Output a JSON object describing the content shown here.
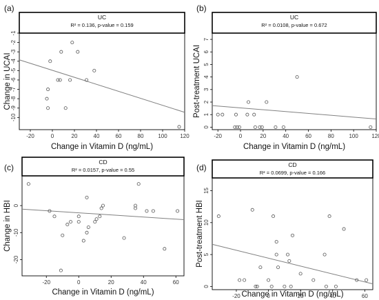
{
  "figure": {
    "panels": [
      {
        "id": "a",
        "label": "(a)",
        "strip_title": "UC",
        "stats_text": "R² = 0.136, p-value = 0.159",
        "xlabel": "Change in Vitamin D (ng/mL)",
        "ylabel": "Change in UCAI"
      },
      {
        "id": "b",
        "label": "(b)",
        "strip_title": "UC",
        "stats_text": "R² = 0.0108, p-value = 0.672",
        "xlabel": "Change in Vitamin D (ng/mL)",
        "ylabel": "Post-treatment UCAI"
      },
      {
        "id": "c",
        "label": "(c)",
        "strip_title": "CD",
        "stats_text": "R² = 0.0157, p-value = 0.55",
        "xlabel": "Change in Vitamin D (ng/mL)",
        "ylabel": "Change in HBI"
      },
      {
        "id": "d",
        "label": "(d)",
        "strip_title": "CD",
        "stats_text": "R² = 0.0699, p-value = 0.166",
        "xlabel": "Change in Vitamin D (ng/mL)",
        "ylabel": "Post-treatment HBI"
      }
    ]
  },
  "chart_data": [
    {
      "type": "scatter",
      "panel": "a",
      "title": "UC",
      "annotation": "R² = 0.136, p-value = 0.159",
      "xlabel": "Change in Vitamin D (ng/mL)",
      "ylabel": "Change in UCAI",
      "xlim": [
        -30,
        120
      ],
      "ylim": [
        -11.3,
        -1
      ],
      "xticks": [
        -20,
        0,
        20,
        40,
        60,
        80,
        100,
        120
      ],
      "yticks": [
        -10,
        -9,
        -8,
        -7,
        -6,
        -5,
        -4,
        -3,
        -2,
        -1
      ],
      "points": [
        {
          "x": -5,
          "y": -8
        },
        {
          "x": -4,
          "y": -9
        },
        {
          "x": -4,
          "y": -7
        },
        {
          "x": -2,
          "y": -4
        },
        {
          "x": 5,
          "y": -6
        },
        {
          "x": 7,
          "y": -6
        },
        {
          "x": 8,
          "y": -3
        },
        {
          "x": 12,
          "y": -9
        },
        {
          "x": 16,
          "y": -6
        },
        {
          "x": 18,
          "y": -2
        },
        {
          "x": 23,
          "y": -3
        },
        {
          "x": 31,
          "y": -6
        },
        {
          "x": 38,
          "y": -5
        },
        {
          "x": 115,
          "y": -11
        }
      ],
      "regression": {
        "x": [
          -30,
          120
        ],
        "y": [
          -3.85,
          -9.45
        ]
      },
      "grid": false,
      "marker_color": "#555555",
      "line_color": "#808080"
    },
    {
      "type": "scatter",
      "panel": "b",
      "title": "UC",
      "annotation": "R² = 0.0108, p-value = 0.672",
      "xlabel": "Change in Vitamin D (ng/mL)",
      "ylabel": "Post-treatment UCAI",
      "xlim": [
        -25,
        120
      ],
      "ylim": [
        -0.2,
        7.5
      ],
      "xticks": [
        -20,
        0,
        20,
        40,
        60,
        80,
        100,
        120
      ],
      "yticks": [
        0,
        1,
        2,
        3,
        4,
        5,
        6,
        7
      ],
      "points": [
        {
          "x": -20,
          "y": 1
        },
        {
          "x": -16,
          "y": 1
        },
        {
          "x": -5,
          "y": 0
        },
        {
          "x": -4,
          "y": 1
        },
        {
          "x": -3,
          "y": 0
        },
        {
          "x": -1,
          "y": 0
        },
        {
          "x": 6,
          "y": 1
        },
        {
          "x": 7,
          "y": 2
        },
        {
          "x": 12,
          "y": 1
        },
        {
          "x": 13,
          "y": 0
        },
        {
          "x": 17,
          "y": 0
        },
        {
          "x": 19,
          "y": 0
        },
        {
          "x": 23,
          "y": 2
        },
        {
          "x": 31,
          "y": 0
        },
        {
          "x": 38,
          "y": 0
        },
        {
          "x": 50,
          "y": 4
        },
        {
          "x": 115,
          "y": 0
        }
      ],
      "regression": {
        "x": [
          -25,
          120
        ],
        "y": [
          1.72,
          0.65
        ]
      },
      "grid": false,
      "marker_color": "#555555",
      "line_color": "#808080"
    },
    {
      "type": "scatter",
      "panel": "c",
      "title": "CD",
      "annotation": "R² = 0.0157, p-value = 0.55",
      "xlabel": "Change in Vitamin D (ng/mL)",
      "ylabel": "Change in HBI",
      "xlim": [
        -35,
        65
      ],
      "ylim": [
        -26,
        11
      ],
      "xticks": [
        -20,
        0,
        20,
        40,
        60
      ],
      "yticks": [
        -20,
        -10,
        0
      ],
      "points": [
        {
          "x": -31,
          "y": 8
        },
        {
          "x": -18,
          "y": -2
        },
        {
          "x": -15,
          "y": -4
        },
        {
          "x": -11,
          "y": -24
        },
        {
          "x": -10,
          "y": -11
        },
        {
          "x": -7,
          "y": -7
        },
        {
          "x": -5,
          "y": -6
        },
        {
          "x": 0,
          "y": -6
        },
        {
          "x": 0,
          "y": -4
        },
        {
          "x": 3,
          "y": -13
        },
        {
          "x": 5,
          "y": -10
        },
        {
          "x": 5,
          "y": 3
        },
        {
          "x": 6,
          "y": -8
        },
        {
          "x": 10,
          "y": -6
        },
        {
          "x": 11,
          "y": -5
        },
        {
          "x": 13,
          "y": -4
        },
        {
          "x": 14,
          "y": -1
        },
        {
          "x": 15,
          "y": 0
        },
        {
          "x": 28,
          "y": -12
        },
        {
          "x": 35,
          "y": 0
        },
        {
          "x": 35,
          "y": -1
        },
        {
          "x": 37,
          "y": 8
        },
        {
          "x": 42,
          "y": -2
        },
        {
          "x": 46,
          "y": -2
        },
        {
          "x": 53,
          "y": -16
        },
        {
          "x": 61,
          "y": -2
        }
      ],
      "regression": {
        "x": [
          -35,
          65
        ],
        "y": [
          -1.3,
          -5.2
        ]
      },
      "grid": false,
      "marker_color": "#555555",
      "line_color": "#808080"
    },
    {
      "type": "scatter",
      "panel": "d",
      "title": "CD",
      "annotation": "R² = 0.0699, p-value = 0.166",
      "xlabel": "Change in Vitamin D (ng/mL)",
      "ylabel": "Post-treatment HBI",
      "xlim": [
        -35,
        65
      ],
      "ylim": [
        -0.5,
        17
      ],
      "xticks": [
        -20,
        0,
        20,
        40,
        60
      ],
      "yticks": [
        0,
        5,
        10,
        15
      ],
      "points": [
        {
          "x": -31,
          "y": 11
        },
        {
          "x": -18,
          "y": 1
        },
        {
          "x": -15,
          "y": 1
        },
        {
          "x": -10,
          "y": 12
        },
        {
          "x": -8,
          "y": 0
        },
        {
          "x": -7,
          "y": 0
        },
        {
          "x": -5,
          "y": 3
        },
        {
          "x": 0,
          "y": 1
        },
        {
          "x": 2,
          "y": 0
        },
        {
          "x": 3,
          "y": 11
        },
        {
          "x": 5,
          "y": 7
        },
        {
          "x": 5,
          "y": 5
        },
        {
          "x": 6,
          "y": 3
        },
        {
          "x": 10,
          "y": 0
        },
        {
          "x": 12,
          "y": 5
        },
        {
          "x": 13,
          "y": 4
        },
        {
          "x": 14,
          "y": 0
        },
        {
          "x": 15,
          "y": 8
        },
        {
          "x": 20,
          "y": 2
        },
        {
          "x": 28,
          "y": 1
        },
        {
          "x": 35,
          "y": 5
        },
        {
          "x": 36,
          "y": 0
        },
        {
          "x": 38,
          "y": 11
        },
        {
          "x": 42,
          "y": 0
        },
        {
          "x": 47,
          "y": 9
        },
        {
          "x": 55,
          "y": 1
        },
        {
          "x": 61,
          "y": 1
        }
      ],
      "regression": {
        "x": [
          -35,
          65
        ],
        "y": [
          6.6,
          0.4
        ]
      },
      "grid": false,
      "marker_color": "#555555",
      "line_color": "#808080"
    }
  ]
}
